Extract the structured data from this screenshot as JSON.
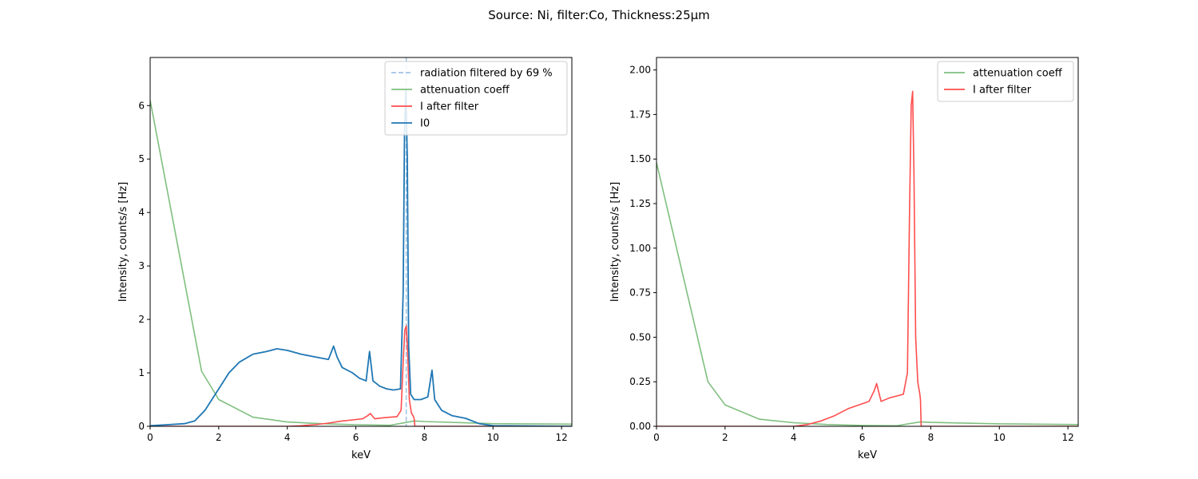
{
  "figure": {
    "suptitle": "Source: Ni, filter:Co, Thickness:25µm"
  },
  "colors": {
    "I0": "#1f77b4",
    "I_after_filter": "#ff4d4d",
    "attenuation": "#7fbf7f",
    "filtered_vline": "#9ec3e6"
  },
  "chart_data": [
    {
      "type": "line",
      "xlabel": "keV",
      "ylabel": "Intensity, counts/s [Hz]",
      "xlim": [
        0,
        12.3
      ],
      "ylim": [
        0,
        6.9
      ],
      "xticks": [
        0,
        2,
        4,
        6,
        8,
        10,
        12
      ],
      "yticks": [
        0,
        1,
        2,
        3,
        4,
        5,
        6
      ],
      "grid": false,
      "legend_position": "top-right",
      "legend": [
        "radiation filtered by 69 %",
        "attenuation coeff",
        "I after filter",
        "I0"
      ],
      "vline": {
        "x": 7.47,
        "series": "radiation filtered by 69 %"
      },
      "series": [
        {
          "name": "attenuation coeff",
          "x": [
            0,
            1.5,
            2,
            3,
            4,
            5,
            6,
            7.0,
            7.7,
            8,
            10,
            12.3
          ],
          "y": [
            6.1,
            1.03,
            0.5,
            0.17,
            0.08,
            0.05,
            0.03,
            0.02,
            0.1,
            0.09,
            0.05,
            0.04
          ]
        },
        {
          "name": "I after filter",
          "x": [
            0,
            4.0,
            4.4,
            4.8,
            5.2,
            5.6,
            5.9,
            6.2,
            6.35,
            6.42,
            6.55,
            6.8,
            7.0,
            7.2,
            7.32,
            7.38,
            7.43,
            7.47,
            7.51,
            7.56,
            7.62,
            7.68,
            7.7,
            7.72,
            12.3
          ],
          "y": [
            0,
            0,
            0.01,
            0.03,
            0.06,
            0.1,
            0.12,
            0.14,
            0.2,
            0.24,
            0.14,
            0.16,
            0.17,
            0.18,
            0.3,
            1.2,
            1.8,
            1.88,
            1.4,
            0.5,
            0.25,
            0.18,
            0.15,
            0,
            0
          ]
        },
        {
          "name": "I0",
          "x": [
            0,
            0.5,
            1.0,
            1.3,
            1.6,
            1.8,
            2.0,
            2.3,
            2.6,
            3.0,
            3.4,
            3.7,
            4.0,
            4.4,
            4.8,
            5.2,
            5.35,
            5.45,
            5.6,
            5.9,
            6.1,
            6.3,
            6.4,
            6.5,
            6.7,
            6.9,
            7.1,
            7.3,
            7.38,
            7.42,
            7.46,
            7.5,
            7.54,
            7.6,
            7.7,
            7.9,
            8.1,
            8.22,
            8.3,
            8.5,
            8.8,
            9.2,
            9.6,
            10.0,
            12.3
          ],
          "y": [
            0.01,
            0.03,
            0.05,
            0.1,
            0.3,
            0.5,
            0.7,
            1.0,
            1.2,
            1.35,
            1.4,
            1.45,
            1.42,
            1.35,
            1.3,
            1.25,
            1.5,
            1.3,
            1.1,
            1.0,
            0.9,
            0.85,
            1.4,
            0.85,
            0.75,
            0.7,
            0.68,
            0.7,
            2.5,
            5.5,
            6.3,
            5.0,
            1.5,
            0.6,
            0.5,
            0.5,
            0.55,
            1.05,
            0.5,
            0.3,
            0.2,
            0.15,
            0.05,
            0.01,
            0
          ]
        }
      ]
    },
    {
      "type": "line",
      "xlabel": "keV",
      "ylabel": "Intensity, counts/s [Hz]",
      "xlim": [
        0,
        12.3
      ],
      "ylim": [
        0,
        2.07
      ],
      "xticks": [
        0,
        2,
        4,
        6,
        8,
        10,
        12
      ],
      "yticks": [
        0.0,
        0.25,
        0.5,
        0.75,
        1.0,
        1.25,
        1.5,
        1.75,
        2.0
      ],
      "ytick_labels": [
        "0.00",
        "0.25",
        "0.50",
        "0.75",
        "1.00",
        "1.25",
        "1.50",
        "1.75",
        "2.00"
      ],
      "grid": false,
      "legend_position": "top-right",
      "legend": [
        "attenuation coeff",
        "I after filter"
      ],
      "series": [
        {
          "name": "attenuation coeff",
          "x": [
            0,
            1.5,
            2,
            3,
            4,
            5,
            6,
            7.0,
            7.7,
            8,
            10,
            12.3
          ],
          "y": [
            1.48,
            0.25,
            0.12,
            0.04,
            0.02,
            0.01,
            0.005,
            0.003,
            0.025,
            0.022,
            0.014,
            0.01
          ]
        },
        {
          "name": "I after filter",
          "x": [
            0,
            4.0,
            4.4,
            4.8,
            5.2,
            5.6,
            5.9,
            6.2,
            6.35,
            6.42,
            6.55,
            6.8,
            7.0,
            7.2,
            7.32,
            7.38,
            7.43,
            7.47,
            7.51,
            7.56,
            7.62,
            7.68,
            7.7,
            7.72,
            12.3
          ],
          "y": [
            0,
            0,
            0.01,
            0.03,
            0.06,
            0.1,
            0.12,
            0.14,
            0.2,
            0.24,
            0.14,
            0.16,
            0.17,
            0.18,
            0.3,
            1.2,
            1.8,
            1.88,
            1.4,
            0.5,
            0.25,
            0.18,
            0.15,
            0,
            0
          ]
        }
      ]
    }
  ]
}
